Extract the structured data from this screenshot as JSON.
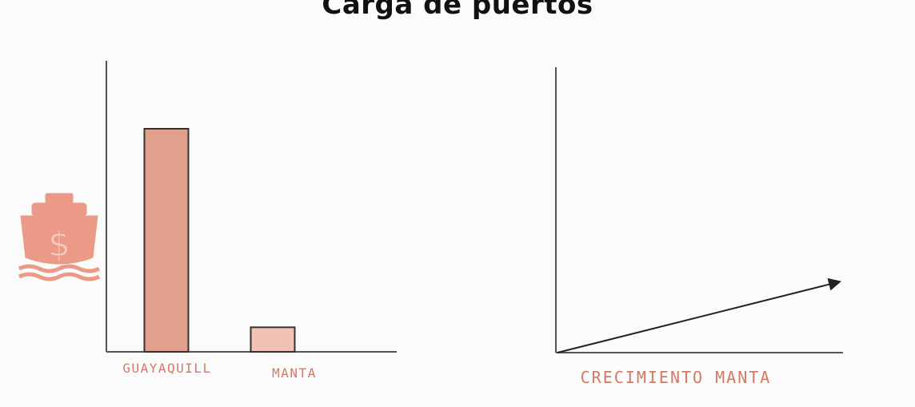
{
  "title": "Carga de puertos",
  "colors": {
    "axis": "#555555",
    "bar_guayaquil": "#e1a08c",
    "bar_manta": "#f2c2b6",
    "bar_stroke": "#333333",
    "label": "#d27a66",
    "icon": "#ea9a86",
    "arrow": "#222222"
  },
  "icons": {
    "port_money": "ship-dollar-icon"
  },
  "chart_data": [
    {
      "type": "bar",
      "categories": [
        "GUAYAQUILL",
        "MANTA"
      ],
      "values": [
        100,
        11
      ],
      "title": "",
      "xlabel": "",
      "ylabel": "",
      "ylim": [
        0,
        100
      ],
      "grid": false
    },
    {
      "type": "line",
      "x": [
        0,
        1
      ],
      "y": [
        0,
        1
      ],
      "title": "",
      "xlabel": "CRECIMIENTO MANTA",
      "ylabel": "",
      "ylim": [
        0,
        4
      ],
      "xlim": [
        0,
        1
      ],
      "grid": false
    }
  ]
}
